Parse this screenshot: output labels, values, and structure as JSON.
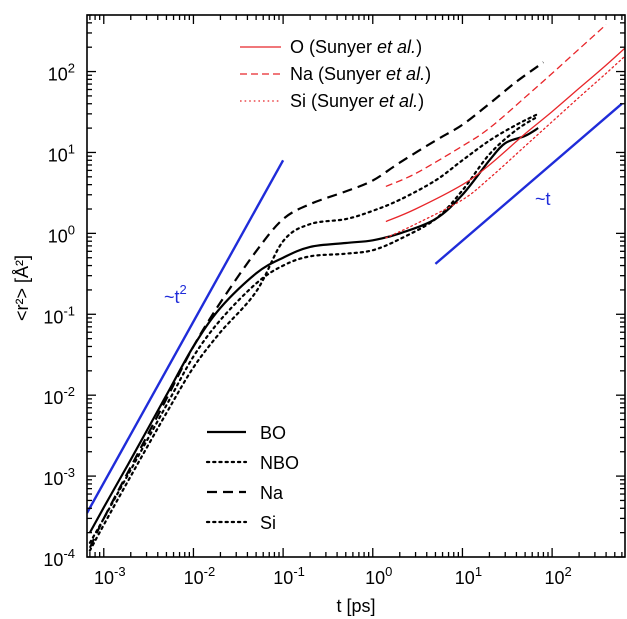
{
  "chart_data": {
    "type": "line",
    "xscale": "log",
    "yscale": "log",
    "xlim": [
      0.00065,
      650
    ],
    "ylim": [
      0.0001,
      500
    ],
    "xlabel": "t [ps]",
    "ylabel": "<r²> [Å²]",
    "x_ticks": [
      {
        "value": 0.001,
        "base": "10",
        "exp": "-3"
      },
      {
        "value": 0.01,
        "base": "10",
        "exp": "-2"
      },
      {
        "value": 0.1,
        "base": "10",
        "exp": "-1"
      },
      {
        "value": 1,
        "base": "10",
        "exp": "0"
      },
      {
        "value": 10,
        "base": "10",
        "exp": "1"
      },
      {
        "value": 100,
        "base": "10",
        "exp": "2"
      }
    ],
    "y_ticks": [
      {
        "value": 0.0001,
        "base": "10",
        "exp": "-4"
      },
      {
        "value": 0.001,
        "base": "10",
        "exp": "-3"
      },
      {
        "value": 0.01,
        "base": "10",
        "exp": "-2"
      },
      {
        "value": 0.1,
        "base": "10",
        "exp": "-1"
      },
      {
        "value": 1,
        "base": "10",
        "exp": "0"
      },
      {
        "value": 10,
        "base": "10",
        "exp": "1"
      },
      {
        "value": 100,
        "base": "10",
        "exp": "2"
      }
    ],
    "series": [
      {
        "name": "BO",
        "color": "#000000",
        "dash": "solid",
        "width": 2.2,
        "points": [
          [
            0.0007,
            0.0002
          ],
          [
            0.001,
            0.00041
          ],
          [
            0.002,
            0.0016
          ],
          [
            0.005,
            0.01
          ],
          [
            0.01,
            0.04
          ],
          [
            0.02,
            0.12
          ],
          [
            0.05,
            0.32
          ],
          [
            0.1,
            0.5
          ],
          [
            0.2,
            0.68
          ],
          [
            0.5,
            0.76
          ],
          [
            1,
            0.82
          ],
          [
            2,
            1.0
          ],
          [
            5,
            1.5
          ],
          [
            10,
            3.0
          ],
          [
            20,
            8.0
          ],
          [
            30,
            13
          ],
          [
            50,
            16
          ],
          [
            70,
            20
          ]
        ]
      },
      {
        "name": "NBO",
        "color": "#000000",
        "dash": "dotted",
        "width": 2.2,
        "points": [
          [
            0.0007,
            0.00015
          ],
          [
            0.001,
            0.0003
          ],
          [
            0.002,
            0.0012
          ],
          [
            0.005,
            0.0075
          ],
          [
            0.01,
            0.03
          ],
          [
            0.02,
            0.085
          ],
          [
            0.05,
            0.24
          ],
          [
            0.1,
            0.4
          ],
          [
            0.2,
            0.52
          ],
          [
            0.5,
            0.56
          ],
          [
            1,
            0.62
          ],
          [
            2,
            0.85
          ],
          [
            5,
            1.5
          ],
          [
            10,
            3.4
          ],
          [
            20,
            9.5
          ],
          [
            40,
            19
          ],
          [
            70,
            28
          ]
        ]
      },
      {
        "name": "Na",
        "color": "#000000",
        "dash": "dashed",
        "width": 2.2,
        "points": [
          [
            0.0007,
            0.00013
          ],
          [
            0.001,
            0.0003
          ],
          [
            0.002,
            0.0013
          ],
          [
            0.005,
            0.009
          ],
          [
            0.01,
            0.04
          ],
          [
            0.02,
            0.14
          ],
          [
            0.05,
            0.6
          ],
          [
            0.1,
            1.5
          ],
          [
            0.2,
            2.3
          ],
          [
            0.5,
            3.3
          ],
          [
            1,
            4.5
          ],
          [
            2,
            7.5
          ],
          [
            5,
            14
          ],
          [
            10,
            22
          ],
          [
            20,
            40
          ],
          [
            40,
            75
          ],
          [
            80,
            130
          ]
        ]
      },
      {
        "name": "Si",
        "color": "#000000",
        "dash": "dotted",
        "width": 2.2,
        "points": [
          [
            0.0007,
            0.00012
          ],
          [
            0.001,
            0.00025
          ],
          [
            0.002,
            0.001
          ],
          [
            0.005,
            0.006
          ],
          [
            0.01,
            0.022
          ],
          [
            0.02,
            0.06
          ],
          [
            0.05,
            0.19
          ],
          [
            0.1,
            0.8
          ],
          [
            0.2,
            1.3
          ],
          [
            0.5,
            1.5
          ],
          [
            1,
            1.9
          ],
          [
            2,
            2.6
          ],
          [
            5,
            4.5
          ],
          [
            10,
            8
          ],
          [
            20,
            14
          ],
          [
            40,
            22
          ],
          [
            70,
            30
          ]
        ]
      },
      {
        "name": "O (Sunyer et al.)",
        "color": "#e8262a",
        "dash": "solid",
        "width": 1.3,
        "points": [
          [
            1.4,
            1.4
          ],
          [
            3,
            2.0
          ],
          [
            10,
            4.0
          ],
          [
            20,
            7
          ],
          [
            50,
            17
          ],
          [
            100,
            32
          ],
          [
            200,
            62
          ],
          [
            400,
            120
          ],
          [
            650,
            195
          ]
        ]
      },
      {
        "name": "Na (Sunyer et al.)",
        "color": "#e8262a",
        "dash": "dashed",
        "width": 1.3,
        "points": [
          [
            1.4,
            3.8
          ],
          [
            3,
            5.5
          ],
          [
            10,
            12
          ],
          [
            20,
            20
          ],
          [
            50,
            48
          ],
          [
            100,
            95
          ],
          [
            200,
            190
          ],
          [
            400,
            380
          ]
        ]
      },
      {
        "name": "Si (Sunyer et al.)",
        "color": "#e8262a",
        "dash": "dotted",
        "width": 1.3,
        "points": [
          [
            1.4,
            0.88
          ],
          [
            3,
            1.3
          ],
          [
            10,
            2.6
          ],
          [
            20,
            4.8
          ],
          [
            50,
            12
          ],
          [
            100,
            24
          ],
          [
            200,
            48
          ],
          [
            400,
            95
          ],
          [
            650,
            155
          ]
        ]
      },
      {
        "name": "~t²",
        "color": "#1f2cd9",
        "dash": "solid",
        "width": 2.4,
        "points": [
          [
            0.00065,
            0.00035
          ],
          [
            0.1,
            8.0
          ]
        ]
      },
      {
        "name": "~t",
        "color": "#1f2cd9",
        "dash": "solid",
        "width": 2.4,
        "points": [
          [
            5,
            0.42
          ],
          [
            600,
            40
          ]
        ]
      }
    ],
    "legend_red": [
      {
        "name": "O",
        "ref": "(Sunyer ",
        "etal": "et al.",
        "close": ")",
        "dash": "solid"
      },
      {
        "name": "Na",
        "ref": "(Sunyer ",
        "etal": "et al.",
        "close": ")",
        "dash": "dashed"
      },
      {
        "name": "Si",
        "ref": "(Sunyer ",
        "etal": "et al.",
        "close": ")",
        "dash": "dotted"
      }
    ],
    "legend_black": [
      {
        "name": "BO",
        "dash": "solid"
      },
      {
        "name": "NBO",
        "dash": "dotted"
      },
      {
        "name": "Na",
        "dash": "dashed"
      },
      {
        "name": "Si",
        "dash": "dotted"
      }
    ],
    "annotations": [
      {
        "id": "t2",
        "base": "~t",
        "exp": "2",
        "color": "#1f2cd9"
      },
      {
        "id": "t1",
        "base": "~t",
        "exp": "",
        "color": "#1f2cd9"
      }
    ],
    "legend_placement": [
      "top-right",
      "bottom-left"
    ],
    "grid": false
  }
}
